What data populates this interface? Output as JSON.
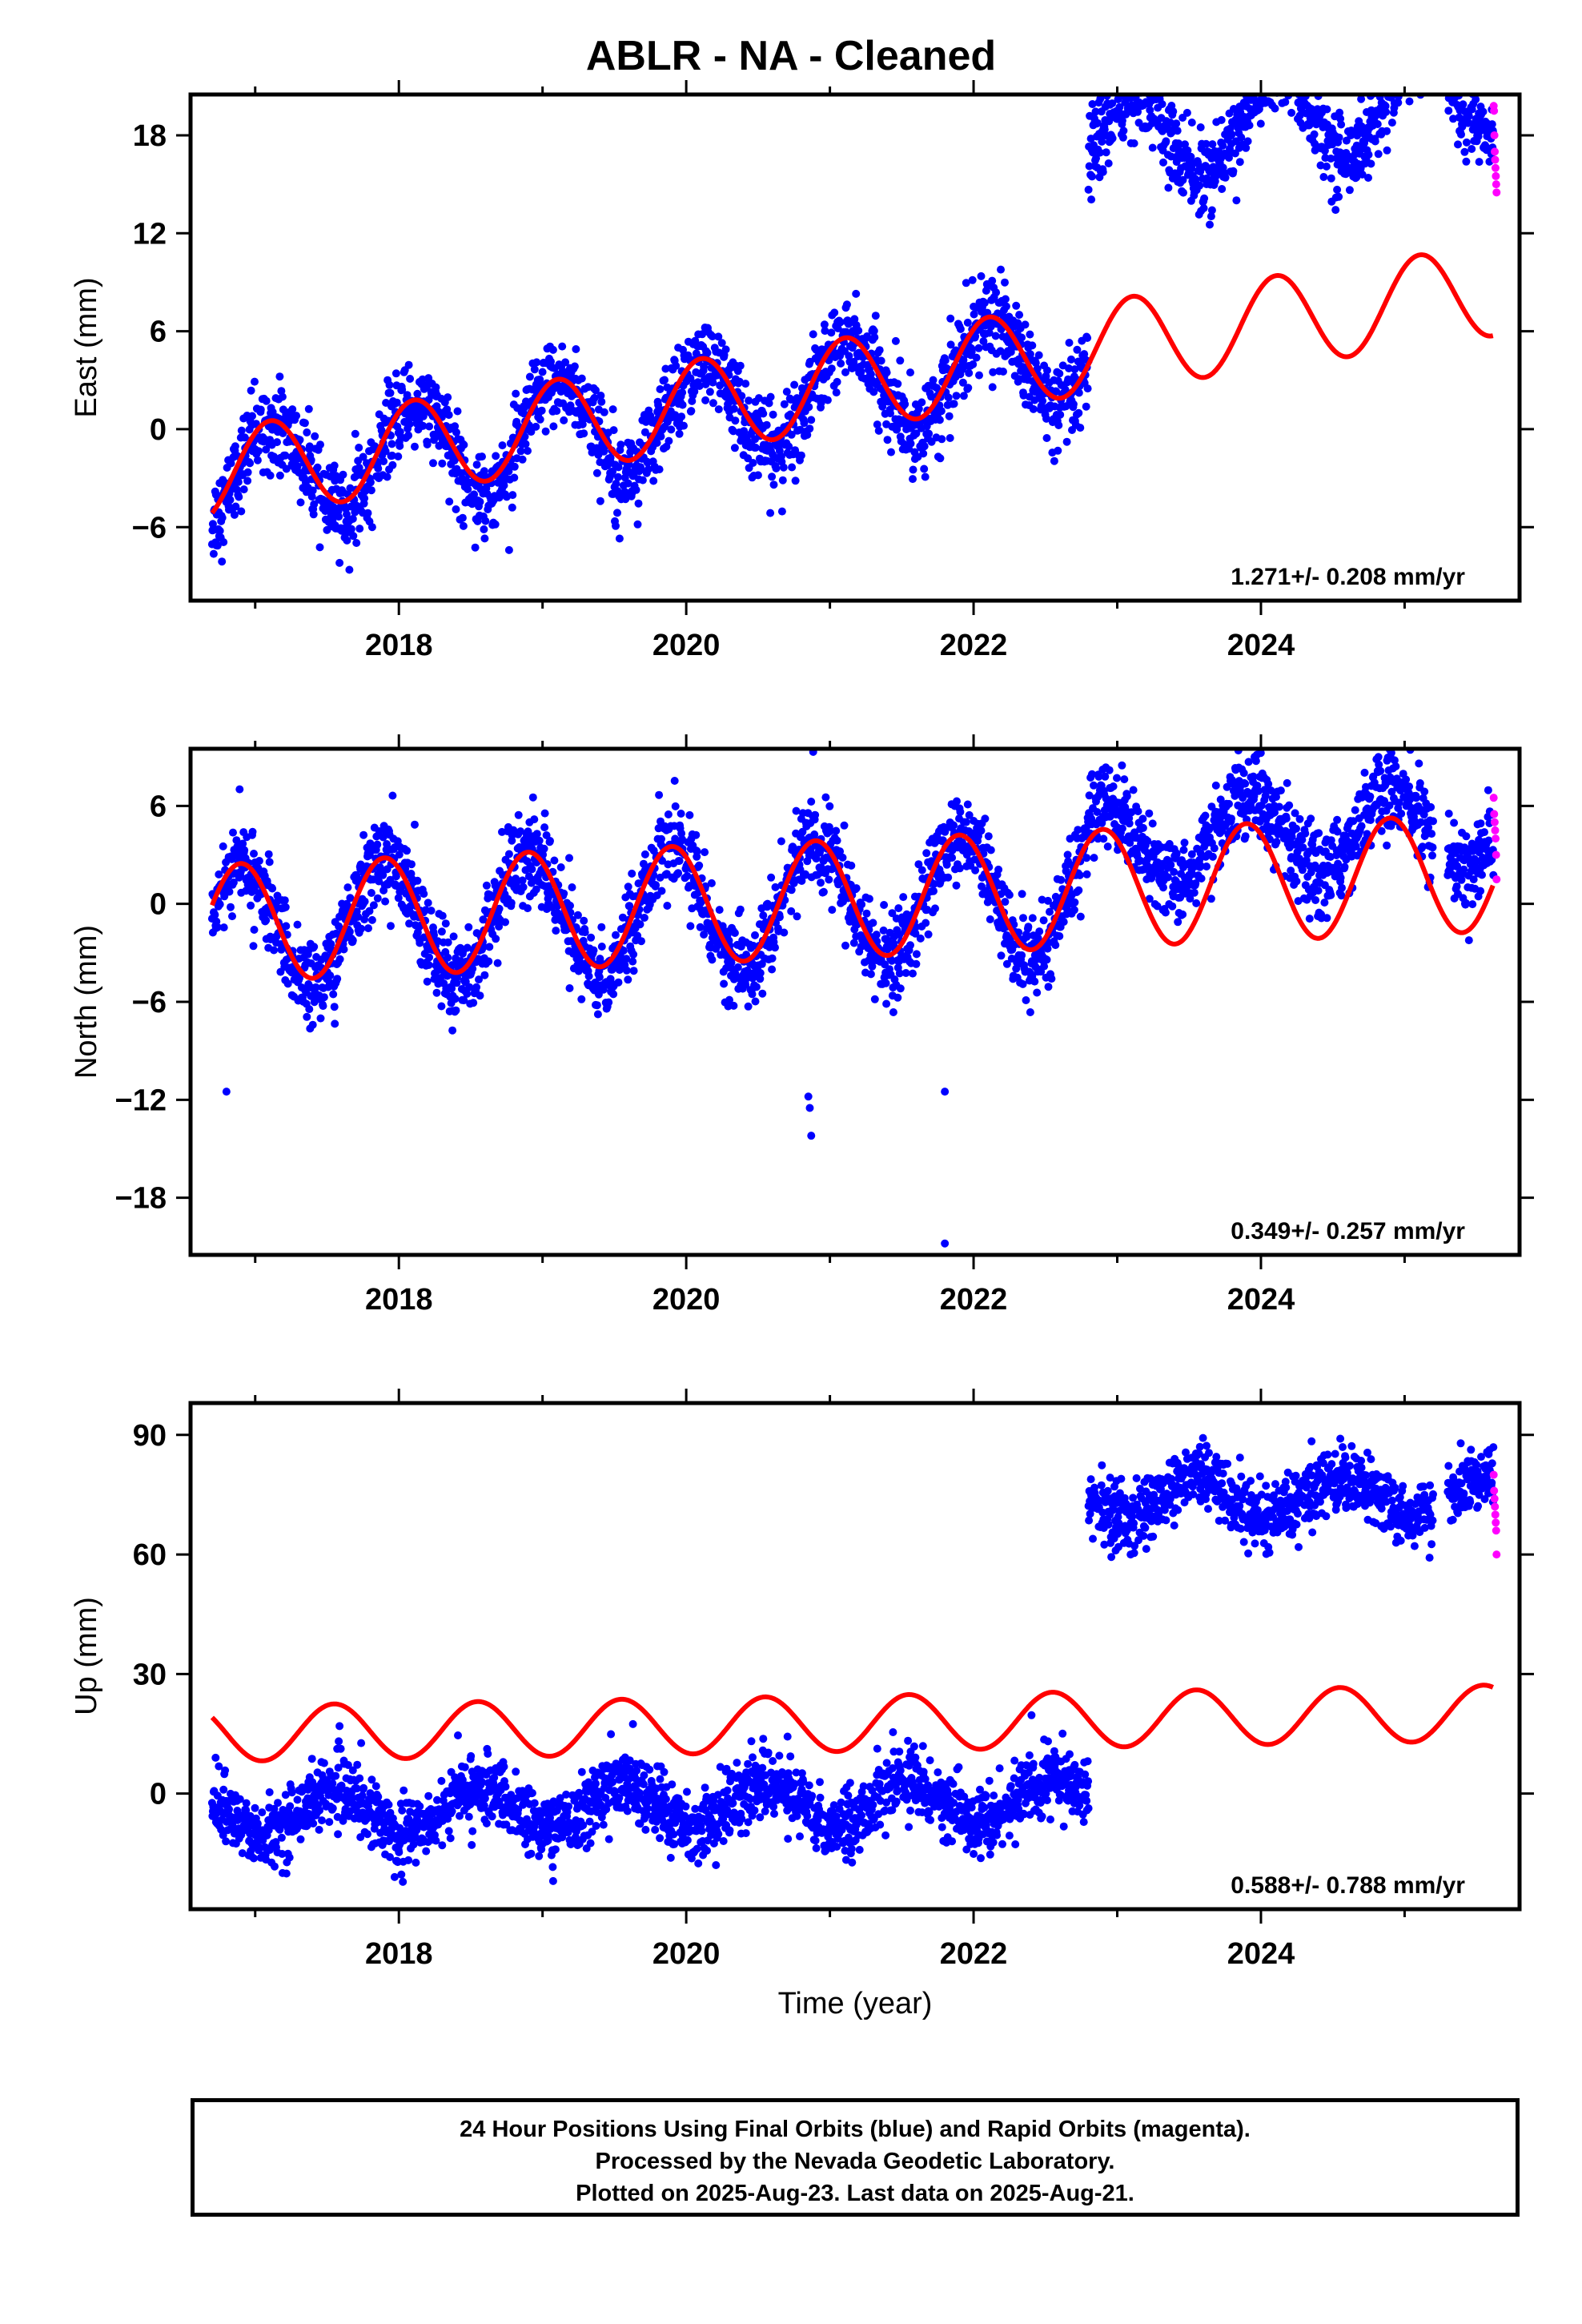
{
  "title": "ABLR  - NA - Cleaned",
  "footer": {
    "line1": "24 Hour Positions Using Final Orbits (blue) and Rapid Orbits (magenta).",
    "line2": "Processed by the Nevada Geodetic Laboratory.",
    "line3": "Plotted on 2025-Aug-23. Last data on 2025-Aug-21."
  },
  "colors": {
    "final": "#0000ff",
    "rapid": "#ff00ff",
    "model": "#ff0000"
  },
  "chart_data": [
    {
      "type": "scatter",
      "ylabel": "East (mm)",
      "xlabel": "",
      "xlim": [
        2016.55,
        2025.8
      ],
      "ylim": [
        -10.5,
        20.5
      ],
      "xticks": [
        2018,
        2020,
        2022,
        2024
      ],
      "xtick_labels": [
        "2018",
        "2020",
        "2022",
        "2024"
      ],
      "yticks": [
        18,
        12,
        6,
        0,
        -6
      ],
      "ytick_labels": [
        "18",
        "12",
        "6",
        "0",
        "−6"
      ],
      "rate_text": "1.271+/- 0.208 mm/yr",
      "segments": [
        {
          "start": 2016.7,
          "end": 2022.8,
          "offset": -3.2,
          "rate": 1.27,
          "amp": 3.0,
          "phase": 0.9,
          "noise": 1.3
        },
        {
          "start": 2022.8,
          "end": 2025.2,
          "offset": 9.5,
          "rate": 1.27,
          "amp": 2.8,
          "phase": 0.9,
          "noise": 1.2
        },
        {
          "start": 2025.3,
          "end": 2025.62,
          "offset": 9.5,
          "rate": 1.27,
          "amp": 2.8,
          "phase": 0.9,
          "noise": 1.0
        }
      ],
      "rapid": {
        "start": 2025.62,
        "end": 2025.64,
        "values": [
          19.8,
          19.5,
          18.0,
          17.0,
          16.5,
          16.0,
          15.5,
          15.0,
          14.5
        ]
      },
      "model": {
        "start": 2016.7,
        "end": 2025.62,
        "offset": -2.8,
        "rate": 1.27,
        "amp": 2.8,
        "phase": 0.9,
        "step": {
          "at": 2022.8,
          "size": 0
        }
      }
    },
    {
      "type": "scatter",
      "ylabel": "North (mm)",
      "xlabel": "",
      "xlim": [
        2016.55,
        2025.8
      ],
      "ylim": [
        -21.5,
        9.5
      ],
      "xticks": [
        2018,
        2020,
        2022,
        2024
      ],
      "xtick_labels": [
        "2018",
        "2020",
        "2022",
        "2024"
      ],
      "yticks": [
        6,
        0,
        -6,
        -12,
        -18
      ],
      "ytick_labels": [
        "6",
        "0",
        "−6",
        "−12",
        "−18"
      ],
      "rate_text": "0.349+/- 0.257 mm/yr",
      "segments": [
        {
          "start": 2016.7,
          "end": 2022.8,
          "offset": -1.5,
          "rate": 0.349,
          "amp": 3.8,
          "phase": 2.2,
          "noise": 1.3
        },
        {
          "start": 2022.8,
          "end": 2025.2,
          "offset": 1.6,
          "rate": 0.349,
          "amp": 2.6,
          "phase": 2.2,
          "noise": 1.3
        },
        {
          "start": 2025.3,
          "end": 2025.62,
          "offset": 1.6,
          "rate": 0.349,
          "amp": 2.6,
          "phase": 2.2,
          "noise": 1.3
        }
      ],
      "outliers": [
        [
          2016.8,
          -11.5
        ],
        [
          2020.85,
          -11.8
        ],
        [
          2020.86,
          -12.5
        ],
        [
          2020.87,
          -14.2
        ],
        [
          2021.8,
          -11.5
        ],
        [
          2021.8,
          -20.8
        ]
      ],
      "rapid": {
        "start": 2025.62,
        "end": 2025.64,
        "values": [
          6.5,
          5.5,
          5.0,
          4.5,
          4.0,
          3.0,
          1.5
        ]
      },
      "model": {
        "start": 2016.7,
        "end": 2025.62,
        "offset": -1.2,
        "rate": 0.349,
        "amp": 3.6,
        "phase": 2.2,
        "step": {
          "at": 2022.8,
          "size": 0
        }
      }
    },
    {
      "type": "scatter",
      "ylabel": "Up (mm)",
      "xlabel": "Time (year)",
      "xlim": [
        2016.55,
        2025.8
      ],
      "ylim": [
        -29,
        98
      ],
      "xticks": [
        2018,
        2020,
        2022,
        2024
      ],
      "xtick_labels": [
        "2018",
        "2020",
        "2022",
        "2024"
      ],
      "yticks": [
        90,
        60,
        30,
        0
      ],
      "ytick_labels": [
        "90",
        "60",
        "30",
        "0"
      ],
      "rate_text": "0.588+/- 0.788 mm/yr",
      "segments": [
        {
          "start": 2016.7,
          "end": 2022.8,
          "offset": -5,
          "rate": 0.588,
          "amp": 5.5,
          "phase": 4.4,
          "noise": 4.2
        },
        {
          "start": 2022.8,
          "end": 2025.2,
          "offset": 70,
          "rate": 0.588,
          "amp": 5.0,
          "phase": 4.4,
          "noise": 4.2
        },
        {
          "start": 2025.3,
          "end": 2025.62,
          "offset": 70,
          "rate": 0.588,
          "amp": 4.0,
          "phase": 4.4,
          "noise": 3.5
        }
      ],
      "rapid": {
        "start": 2025.62,
        "end": 2025.64,
        "values": [
          80,
          76,
          74,
          72,
          70,
          68,
          66,
          60
        ]
      },
      "model": {
        "start": 2016.7,
        "end": 2025.62,
        "offset": 15,
        "rate": 0.588,
        "amp": 7.0,
        "phase": 4.4,
        "step": {
          "at": 2022.8,
          "size": 0
        }
      }
    }
  ]
}
